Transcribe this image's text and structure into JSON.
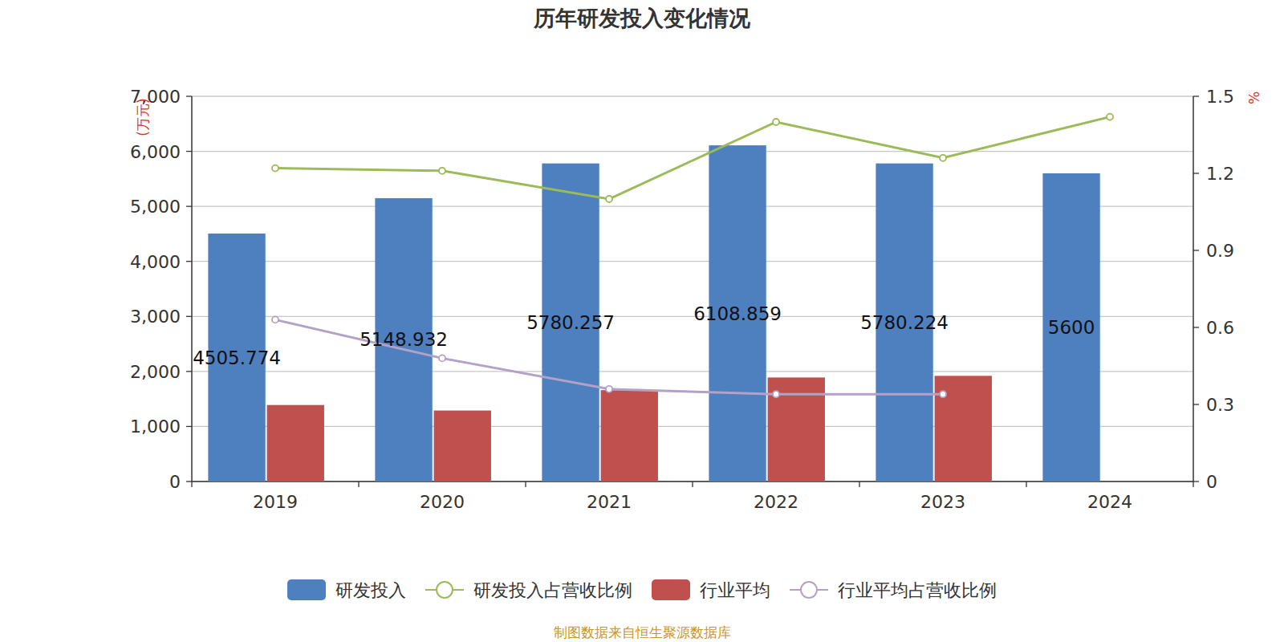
{
  "chart_data": {
    "type": "bar",
    "title": "历年研发投入变化情况",
    "y_label": "(万元)",
    "y2_label": "%",
    "source": "制图数据来自恒生聚源数据库",
    "categories": [
      "2019",
      "2020",
      "2021",
      "2022",
      "2023",
      "2024"
    ],
    "series": [
      {
        "name": "研发投入",
        "type": "bar",
        "color": "#4e7fbf",
        "data_labels": true,
        "values": [
          4505.774,
          5148.932,
          5780.257,
          6108.859,
          5780.224,
          5600
        ]
      },
      {
        "name": "研发投入占营收比例",
        "type": "line",
        "axis": "y2",
        "color": "#9bbb59",
        "marker": "circle",
        "values": [
          1.22,
          1.21,
          1.1,
          1.4,
          1.26,
          1.42
        ]
      },
      {
        "name": "行业平均",
        "type": "bar",
        "color": "#c0504d",
        "values": [
          1390,
          1290,
          1660,
          1890,
          1920,
          null
        ]
      },
      {
        "name": "行业平均占营收比例",
        "type": "line",
        "axis": "y2",
        "color": "#b3a2c7",
        "marker": "circle",
        "values": [
          0.63,
          0.48,
          0.36,
          0.34,
          0.34,
          null
        ]
      }
    ],
    "ylim": [
      0,
      7000
    ],
    "yticks": [
      0,
      {
        "value": 1000,
        "label": "1,000"
      },
      {
        "value": 2000,
        "label": "2,000"
      },
      {
        "value": 3000,
        "label": "3,000"
      },
      {
        "value": 4000,
        "label": "4,000"
      },
      {
        "value": 5000,
        "label": "5,000"
      },
      {
        "value": 6000,
        "label": "6,000"
      },
      {
        "value": 7000,
        "label": "7,000"
      }
    ],
    "y2lim": [
      0,
      1.5
    ],
    "y2ticks": [
      0,
      0.3,
      0.6,
      0.9,
      1.2,
      1.5
    ],
    "grid": true,
    "legend": "bottom"
  }
}
